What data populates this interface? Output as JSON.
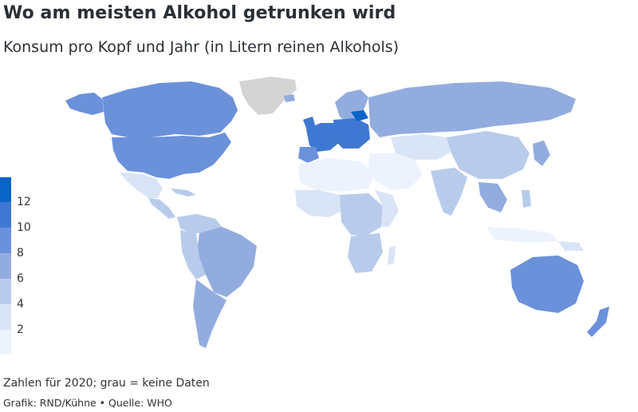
{
  "header": {
    "title": "Wo am meisten Alkohol getrunken wird",
    "subtitle": "Konsum pro Kopf und Jahr (in Litern reinen Alkohols)"
  },
  "legend": {
    "ticks": [
      "12",
      "10",
      "8",
      "6",
      "4",
      "2"
    ],
    "colors": [
      "#0a64c8",
      "#3f78d2",
      "#6a91da",
      "#92acdf",
      "#b8cbeb",
      "#d9e5f7",
      "#edf3fc"
    ]
  },
  "colors": {
    "no_data": "#d4d4d4",
    "level_0_2": "#edf3fc",
    "level_2_4": "#d9e5f7",
    "level_4_6": "#b8cbeb",
    "level_6_8": "#92acdf",
    "level_8_10": "#6a91da",
    "level_10_12": "#3f78d2",
    "level_12_plus": "#0a64c8"
  },
  "footer": {
    "note": "Zahlen für 2020; grau = keine Daten",
    "credit": "Grafik: RND/Kühne • Quelle: WHO"
  }
}
